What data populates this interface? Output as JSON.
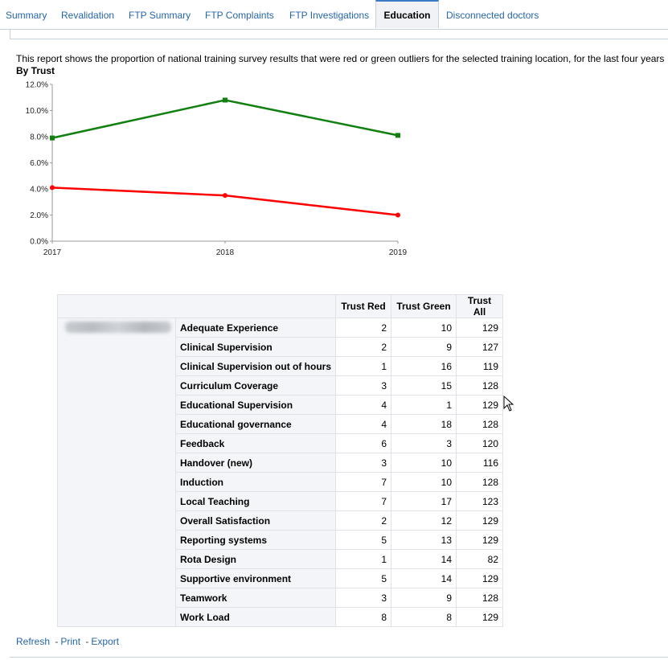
{
  "tabs": [
    {
      "label": "Summary",
      "active": false
    },
    {
      "label": "Revalidation",
      "active": false
    },
    {
      "label": "FTP Summary",
      "active": false
    },
    {
      "label": "FTP Complaints",
      "active": false
    },
    {
      "label": "FTP Investigations",
      "active": false
    },
    {
      "label": "Education",
      "active": true
    },
    {
      "label": "Disconnected doctors",
      "active": false
    }
  ],
  "report": {
    "description": "This report shows the proportion of national training survey results that were red or green outliers for the selected training location, for the last four years",
    "section_title": "By Trust"
  },
  "chart_data": {
    "type": "line",
    "x": [
      "2017",
      "2018",
      "2019"
    ],
    "y_ticks": [
      "0.0%",
      "2.0%",
      "4.0%",
      "6.0%",
      "8.0%",
      "10.0%",
      "12.0%"
    ],
    "ylim": [
      0,
      12
    ],
    "grid": false,
    "series": [
      {
        "color": "#118011",
        "marker": "square",
        "values": [
          7.9,
          10.8,
          8.1
        ]
      },
      {
        "color": "#ff0000",
        "marker": "circle",
        "values": [
          4.1,
          3.5,
          2.0
        ]
      }
    ]
  },
  "table": {
    "columns": [
      "Trust Red",
      "Trust Green",
      "Trust All"
    ],
    "rows": [
      {
        "label": "Adequate Experience",
        "red": "2",
        "green": "10",
        "all": "129"
      },
      {
        "label": "Clinical Supervision",
        "red": "2",
        "green": "9",
        "all": "127"
      },
      {
        "label": "Clinical Supervision out of hours",
        "red": "1",
        "green": "16",
        "all": "119"
      },
      {
        "label": "Curriculum Coverage",
        "red": "3",
        "green": "15",
        "all": "128"
      },
      {
        "label": "Educational Supervision",
        "red": "4",
        "green": "1",
        "all": "129"
      },
      {
        "label": "Educational governance",
        "red": "4",
        "green": "18",
        "all": "128"
      },
      {
        "label": "Feedback",
        "red": "6",
        "green": "3",
        "all": "120"
      },
      {
        "label": "Handover (new)",
        "red": "3",
        "green": "10",
        "all": "116"
      },
      {
        "label": "Induction",
        "red": "7",
        "green": "10",
        "all": "128"
      },
      {
        "label": "Local Teaching",
        "red": "7",
        "green": "17",
        "all": "123"
      },
      {
        "label": "Overall Satisfaction",
        "red": "2",
        "green": "12",
        "all": "129"
      },
      {
        "label": "Reporting systems",
        "red": "5",
        "green": "13",
        "all": "129"
      },
      {
        "label": "Rota Design",
        "red": "1",
        "green": "14",
        "all": "82"
      },
      {
        "label": "Supportive environment",
        "red": "5",
        "green": "14",
        "all": "129"
      },
      {
        "label": "Teamwork",
        "red": "3",
        "green": "9",
        "all": "128"
      },
      {
        "label": "Work Load",
        "red": "8",
        "green": "8",
        "all": "129"
      }
    ]
  },
  "footer": {
    "refresh": "Refresh",
    "print": "Print",
    "export": "Export",
    "separator": "-"
  }
}
